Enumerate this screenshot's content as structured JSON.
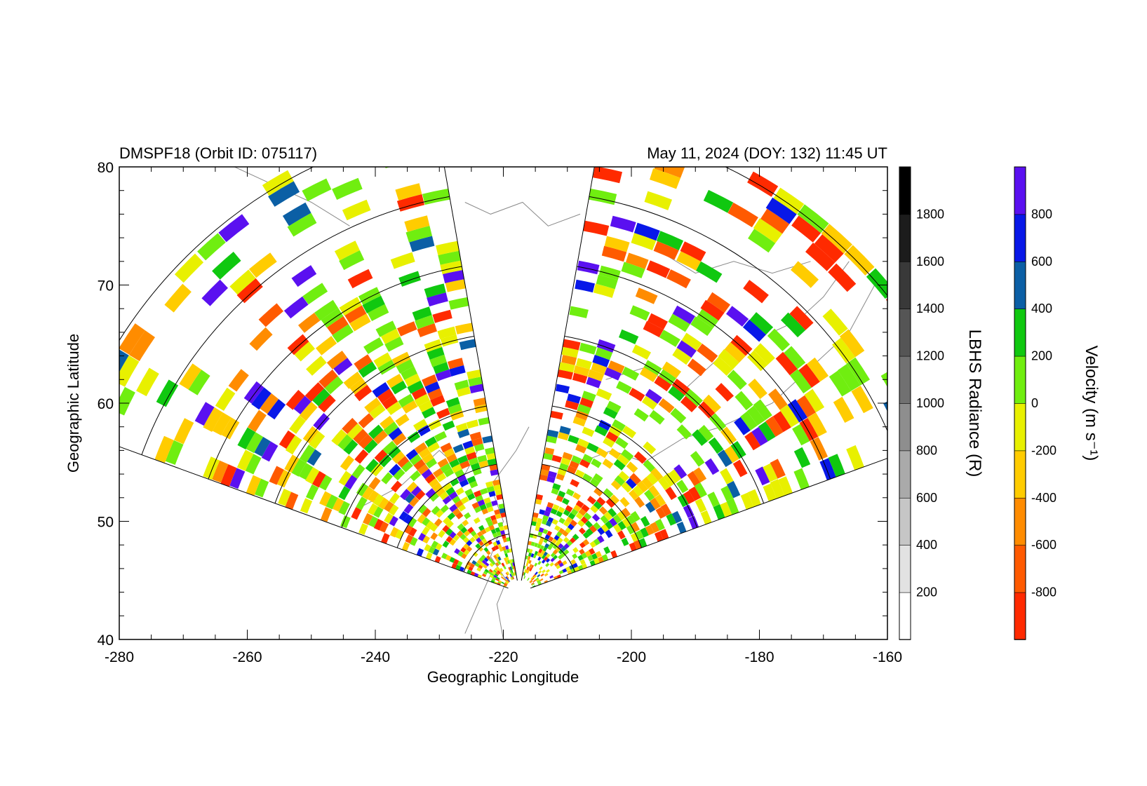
{
  "header": {
    "left_title": "DMSPF18 (Orbit ID: 075117)",
    "right_title": "May 11, 2024 (DOY: 132) 11:45 UT"
  },
  "chart_data": {
    "type": "heatmap",
    "xlabel": "Geographic Longitude",
    "ylabel": "Geographic Latitude",
    "xlim": [
      -280,
      -160
    ],
    "ylim": [
      40,
      80
    ],
    "x_ticks": [
      "-280",
      "-260",
      "-240",
      "-220",
      "-200",
      "-180",
      "-160"
    ],
    "y_ticks": [
      "40",
      "50",
      "60",
      "70",
      "80"
    ],
    "fan_field_of_view": {
      "apex": {
        "lon": -217.5,
        "lat": 44
      },
      "left_fan_azimuth_deg": [
        -70,
        -10
      ],
      "right_fan_azimuth_deg": [
        10,
        70
      ],
      "range_gates_lat_deg": [
        5,
        11,
        16,
        22,
        28,
        34,
        40
      ]
    },
    "auroral_image": {
      "lon_range": [
        -280,
        -266
      ],
      "lat_range": [
        56,
        80
      ],
      "colorbar": {
        "title": "LBHS Radiance (R)",
        "tick_labels": [
          "200",
          "400",
          "600",
          "800",
          "1000",
          "1200",
          "1400",
          "1600",
          "1800"
        ],
        "range": [
          0,
          2000
        ],
        "colors": [
          "#ffffff",
          "#e2e2e2",
          "#c6c6c6",
          "#aaaaaa",
          "#8e8e8e",
          "#717171",
          "#555555",
          "#393939",
          "#1c1c1c",
          "#000000"
        ]
      }
    },
    "velocity": {
      "colorbar": {
        "title": "Velocity (m s⁻¹)",
        "tick_labels": [
          "-800",
          "-600",
          "-400",
          "-200",
          "0",
          "200",
          "400",
          "600",
          "800"
        ],
        "range": [
          -1000,
          1000
        ],
        "colors": [
          "#ff2a00",
          "#ff5a00",
          "#ff8c00",
          "#ffcc00",
          "#e8f000",
          "#70ee10",
          "#10c810",
          "#0b5fa5",
          "#0818e8",
          "#5a10f0"
        ]
      }
    }
  }
}
